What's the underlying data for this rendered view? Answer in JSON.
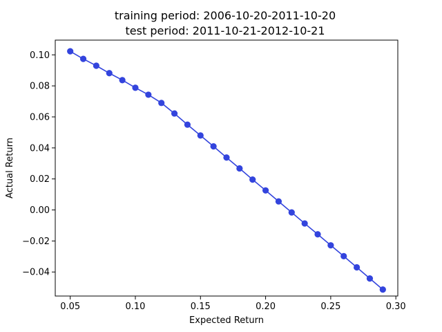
{
  "chart_data": {
    "type": "line",
    "title_lines": [
      "training period: 2006-10-20-2011-10-20",
      "test period: 2011-10-21-2012-10-21"
    ],
    "xlabel": "Expected Return",
    "ylabel": "Actual Return",
    "xlim": [
      0.0385,
      0.3015
    ],
    "ylim": [
      -0.0555,
      0.1095
    ],
    "x_ticks": [
      0.05,
      0.1,
      0.15,
      0.2,
      0.25,
      0.3
    ],
    "x_tick_labels": [
      "0.05",
      "0.10",
      "0.15",
      "0.20",
      "0.25",
      "0.30"
    ],
    "y_ticks": [
      -0.04,
      -0.02,
      0.0,
      0.02,
      0.04,
      0.06,
      0.08,
      0.1
    ],
    "y_tick_labels": [
      "−0.04",
      "−0.02",
      "0.00",
      "0.02",
      "0.04",
      "0.06",
      "0.08",
      "0.10"
    ],
    "grid": false,
    "series": [
      {
        "color": "#3344dd",
        "marker": "circle",
        "x": [
          0.05,
          0.06,
          0.07,
          0.08,
          0.09,
          0.1,
          0.11,
          0.12,
          0.13,
          0.14,
          0.15,
          0.16,
          0.17,
          0.18,
          0.19,
          0.2,
          0.21,
          0.22,
          0.23,
          0.24,
          0.25,
          0.26,
          0.27,
          0.28,
          0.29
        ],
        "y": [
          0.1023,
          0.0974,
          0.093,
          0.0882,
          0.0837,
          0.0788,
          0.0743,
          0.069,
          0.0622,
          0.055,
          0.048,
          0.041,
          0.0338,
          0.0268,
          0.0196,
          0.0126,
          0.0055,
          -0.0016,
          -0.0087,
          -0.0157,
          -0.0228,
          -0.0298,
          -0.037,
          -0.0442,
          -0.0513
        ]
      }
    ]
  }
}
